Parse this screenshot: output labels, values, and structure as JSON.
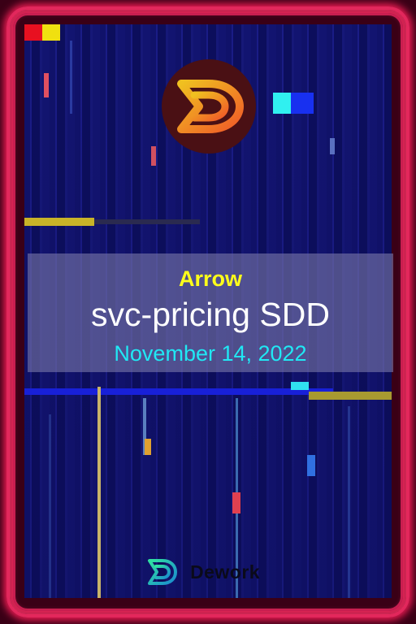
{
  "card": {
    "title": "Arrow",
    "document": "svc-pricing SDD",
    "date": "November 14, 2022"
  },
  "footer": {
    "brand": "Dework",
    "logo_icon": "dework-logo-icon"
  },
  "top_logo": {
    "icon": "dework-d-logo-icon"
  },
  "colors": {
    "frame": "#e0285c",
    "background": "#121470",
    "title": "#ffff1a",
    "document": "#ffffff",
    "date": "#20e8f4",
    "logo_gradient_start": "#f0c020",
    "logo_gradient_end": "#f05a28"
  }
}
